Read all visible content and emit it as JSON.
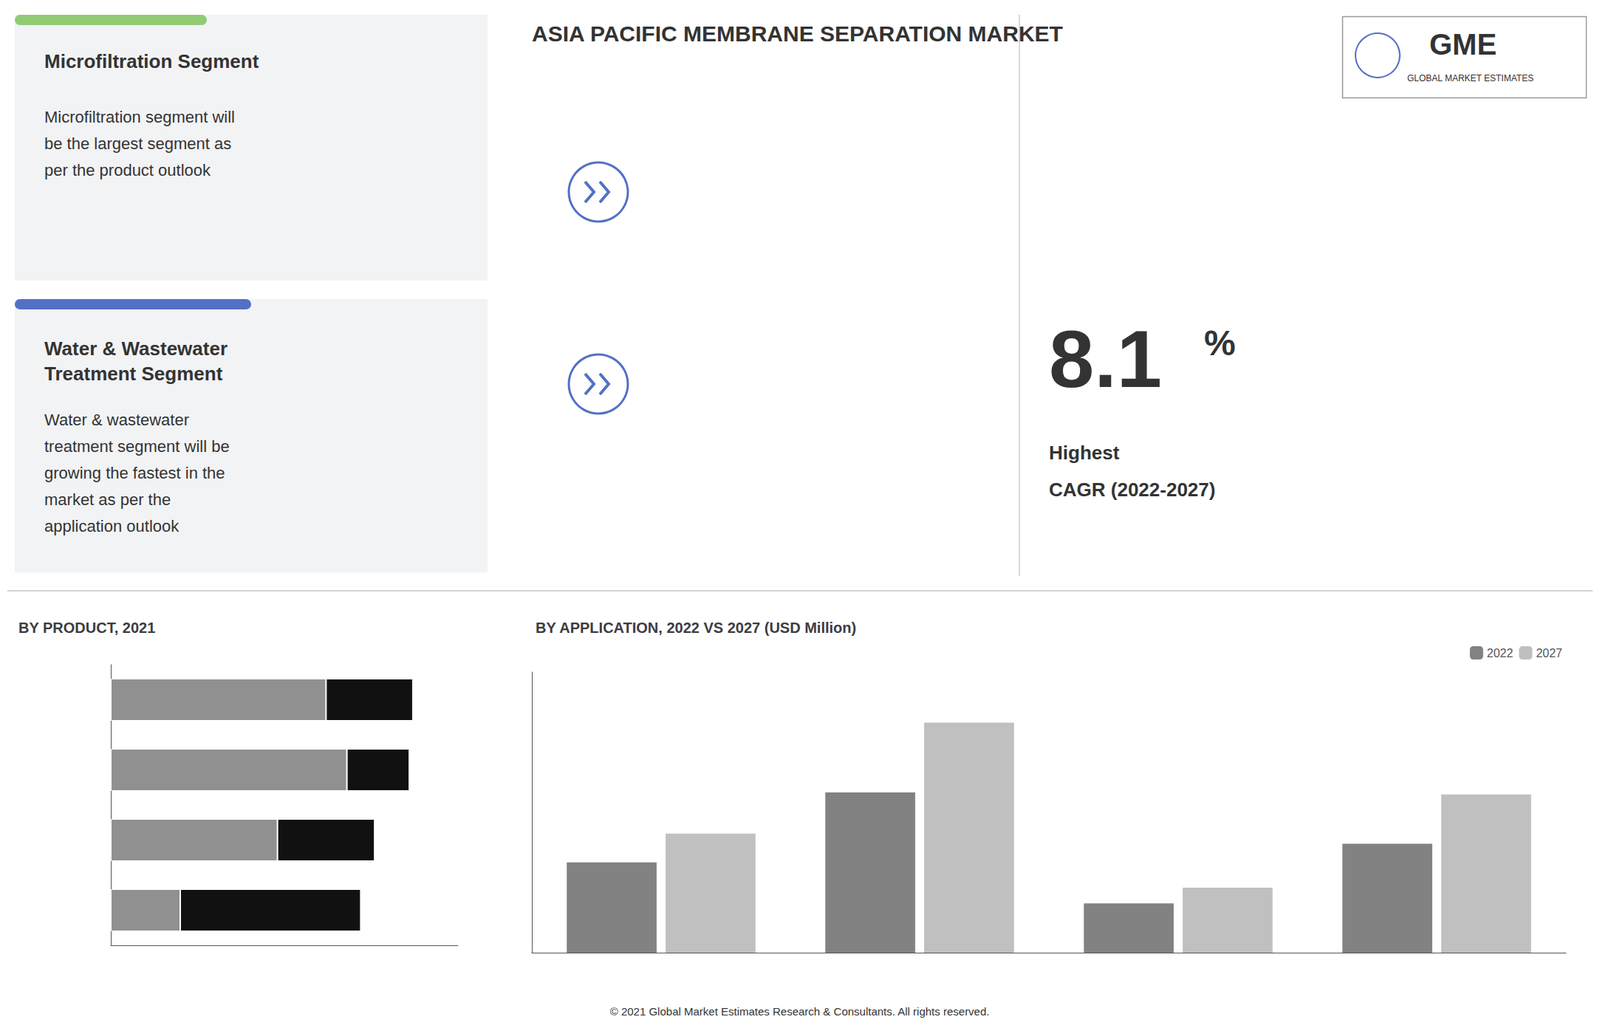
{
  "chart_data": [
    {
      "type": "bar",
      "title": "BY PRODUCT, 2021",
      "orientation": "horizontal",
      "stacked": true,
      "categories": [
        null,
        null,
        null,
        null
      ],
      "series": [
        {
          "color": "#909090",
          "values": [
            0.62,
            0.68,
            0.48,
            0.2
          ]
        },
        {
          "color": "#111111",
          "values": [
            0.25,
            0.18,
            0.28,
            0.52
          ]
        }
      ],
      "xlim": [
        0,
        1
      ],
      "tick_labels": false,
      "grid": false,
      "annotations": [
        "ASIA PACIFIC MEMBRANE SEPARATION MARKET",
        "Microfiltration Segment",
        "Microfiltration segment will\nbe the largest segment as\nper the product outlook",
        "Water & Wastewater\nTreatment Segment",
        "Water & wastewater\ntreatment segment will be\ngrowing the fastest in the\nmarket as per the\napplication outlook",
        "8.1",
        "%",
        "Highest",
        "CAGR (2022-2027)",
        "GME",
        "GLOBAL MARKET ESTIMATES",
        "© 2021 Global Market Estimates Research & Consultants. All rights reserved."
      ]
    },
    {
      "type": "bar",
      "title": "BY APPLICATION, 2022 VS 2027 (USD Million)",
      "categories": [
        null,
        null,
        null,
        null
      ],
      "series": [
        {
          "name": "2022",
          "color": "#828282",
          "values": [
            220,
            390,
            120,
            265
          ]
        },
        {
          "name": "2027",
          "color": "#c0c0c0",
          "values": [
            290,
            560,
            158,
            385
          ]
        }
      ],
      "ylim": [
        0,
        683.2
      ],
      "tick_labels": false,
      "grid": false,
      "legend": "upper right"
    }
  ]
}
